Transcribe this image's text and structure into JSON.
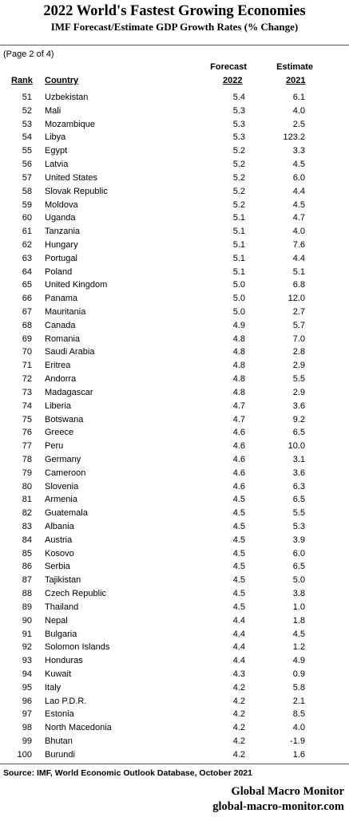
{
  "title": "2022 World's Fastest Growing Economies",
  "subtitle": "IMF Forecast/Estimate GDP Growth Rates (%  Change)",
  "page_note": "(Page 2 of 4)",
  "headers": {
    "rank": "Rank",
    "country": "Country",
    "forecast_top": "Forecast",
    "forecast_year": "2022",
    "estimate_top": "Estimate",
    "estimate_year": "2021"
  },
  "rows": [
    {
      "rank": "51",
      "country": "Uzbekistan",
      "forecast": "5.4",
      "estimate": "6.1"
    },
    {
      "rank": "52",
      "country": "Mali",
      "forecast": "5.3",
      "estimate": "4.0"
    },
    {
      "rank": "53",
      "country": "Mozambique",
      "forecast": "5.3",
      "estimate": "2.5"
    },
    {
      "rank": "54",
      "country": "Libya",
      "forecast": "5.3",
      "estimate": "123.2"
    },
    {
      "rank": "55",
      "country": "Egypt",
      "forecast": "5.2",
      "estimate": "3.3"
    },
    {
      "rank": "56",
      "country": "Latvia",
      "forecast": "5.2",
      "estimate": "4.5"
    },
    {
      "rank": "57",
      "country": "United States",
      "forecast": "5.2",
      "estimate": "6.0"
    },
    {
      "rank": "58",
      "country": "Slovak Republic",
      "forecast": "5.2",
      "estimate": "4.4"
    },
    {
      "rank": "59",
      "country": "Moldova",
      "forecast": "5.2",
      "estimate": "4.5"
    },
    {
      "rank": "60",
      "country": "Uganda",
      "forecast": "5.1",
      "estimate": "4.7"
    },
    {
      "rank": "61",
      "country": "Tanzania",
      "forecast": "5.1",
      "estimate": "4.0"
    },
    {
      "rank": "62",
      "country": "Hungary",
      "forecast": "5.1",
      "estimate": "7.6"
    },
    {
      "rank": "63",
      "country": "Portugal",
      "forecast": "5.1",
      "estimate": "4.4"
    },
    {
      "rank": "64",
      "country": "Poland",
      "forecast": "5.1",
      "estimate": "5.1"
    },
    {
      "rank": "65",
      "country": "United Kingdom",
      "forecast": "5.0",
      "estimate": "6.8"
    },
    {
      "rank": "66",
      "country": "Panama",
      "forecast": "5.0",
      "estimate": "12.0"
    },
    {
      "rank": "67",
      "country": "Mauritania",
      "forecast": "5.0",
      "estimate": "2.7"
    },
    {
      "rank": "68",
      "country": "Canada",
      "forecast": "4.9",
      "estimate": "5.7"
    },
    {
      "rank": "69",
      "country": "Romania",
      "forecast": "4.8",
      "estimate": "7.0"
    },
    {
      "rank": "70",
      "country": "Saudi Arabia",
      "forecast": "4.8",
      "estimate": "2.8"
    },
    {
      "rank": "71",
      "country": "Eritrea",
      "forecast": "4.8",
      "estimate": "2.9"
    },
    {
      "rank": "72",
      "country": "Andorra",
      "forecast": "4.8",
      "estimate": "5.5"
    },
    {
      "rank": "73",
      "country": "Madagascar",
      "forecast": "4.8",
      "estimate": "2.9"
    },
    {
      "rank": "74",
      "country": "Liberia",
      "forecast": "4.7",
      "estimate": "3.6"
    },
    {
      "rank": "75",
      "country": "Botswana",
      "forecast": "4.7",
      "estimate": "9.2"
    },
    {
      "rank": "76",
      "country": "Greece",
      "forecast": "4.6",
      "estimate": "6.5"
    },
    {
      "rank": "77",
      "country": "Peru",
      "forecast": "4.6",
      "estimate": "10.0"
    },
    {
      "rank": "78",
      "country": "Germany",
      "forecast": "4.6",
      "estimate": "3.1"
    },
    {
      "rank": "79",
      "country": "Cameroon",
      "forecast": "4.6",
      "estimate": "3.6"
    },
    {
      "rank": "80",
      "country": "Slovenia",
      "forecast": "4.6",
      "estimate": "6.3"
    },
    {
      "rank": "81",
      "country": "Armenia",
      "forecast": "4.5",
      "estimate": "6.5"
    },
    {
      "rank": "82",
      "country": "Guatemala",
      "forecast": "4.5",
      "estimate": "5.5"
    },
    {
      "rank": "83",
      "country": "Albania",
      "forecast": "4.5",
      "estimate": "5.3"
    },
    {
      "rank": "84",
      "country": "Austria",
      "forecast": "4.5",
      "estimate": "3.9"
    },
    {
      "rank": "85",
      "country": "Kosovo",
      "forecast": "4.5",
      "estimate": "6.0"
    },
    {
      "rank": "86",
      "country": "Serbia",
      "forecast": "4.5",
      "estimate": "6.5"
    },
    {
      "rank": "87",
      "country": "Tajikistan",
      "forecast": "4.5",
      "estimate": "5.0"
    },
    {
      "rank": "88",
      "country": "Czech Republic",
      "forecast": "4.5",
      "estimate": "3.8"
    },
    {
      "rank": "89",
      "country": "Thailand",
      "forecast": "4.5",
      "estimate": "1.0"
    },
    {
      "rank": "90",
      "country": "Nepal",
      "forecast": "4.4",
      "estimate": "1.8"
    },
    {
      "rank": "91",
      "country": "Bulgaria",
      "forecast": "4.4",
      "estimate": "4.5"
    },
    {
      "rank": "92",
      "country": "Solomon Islands",
      "forecast": "4.4",
      "estimate": "1.2"
    },
    {
      "rank": "93",
      "country": "Honduras",
      "forecast": "4.4",
      "estimate": "4.9"
    },
    {
      "rank": "94",
      "country": "Kuwait",
      "forecast": "4.3",
      "estimate": "0.9"
    },
    {
      "rank": "95",
      "country": "Italy",
      "forecast": "4.2",
      "estimate": "5.8"
    },
    {
      "rank": "96",
      "country": "Lao P.D.R.",
      "forecast": "4.2",
      "estimate": "2.1"
    },
    {
      "rank": "97",
      "country": "Estonia",
      "forecast": "4.2",
      "estimate": "8.5"
    },
    {
      "rank": "98",
      "country": "North Macedonia",
      "forecast": "4.2",
      "estimate": "4.0"
    },
    {
      "rank": "99",
      "country": "Bhutan",
      "forecast": "4.2",
      "estimate": "-1.9"
    },
    {
      "rank": "100",
      "country": "Burundi",
      "forecast": "4.2",
      "estimate": "1.6"
    }
  ],
  "source": "Source: IMF, World Economic Outlook Database,  October 2021",
  "brand": {
    "name": "Global Macro Monitor",
    "site": "global-macro-monitor.com"
  }
}
